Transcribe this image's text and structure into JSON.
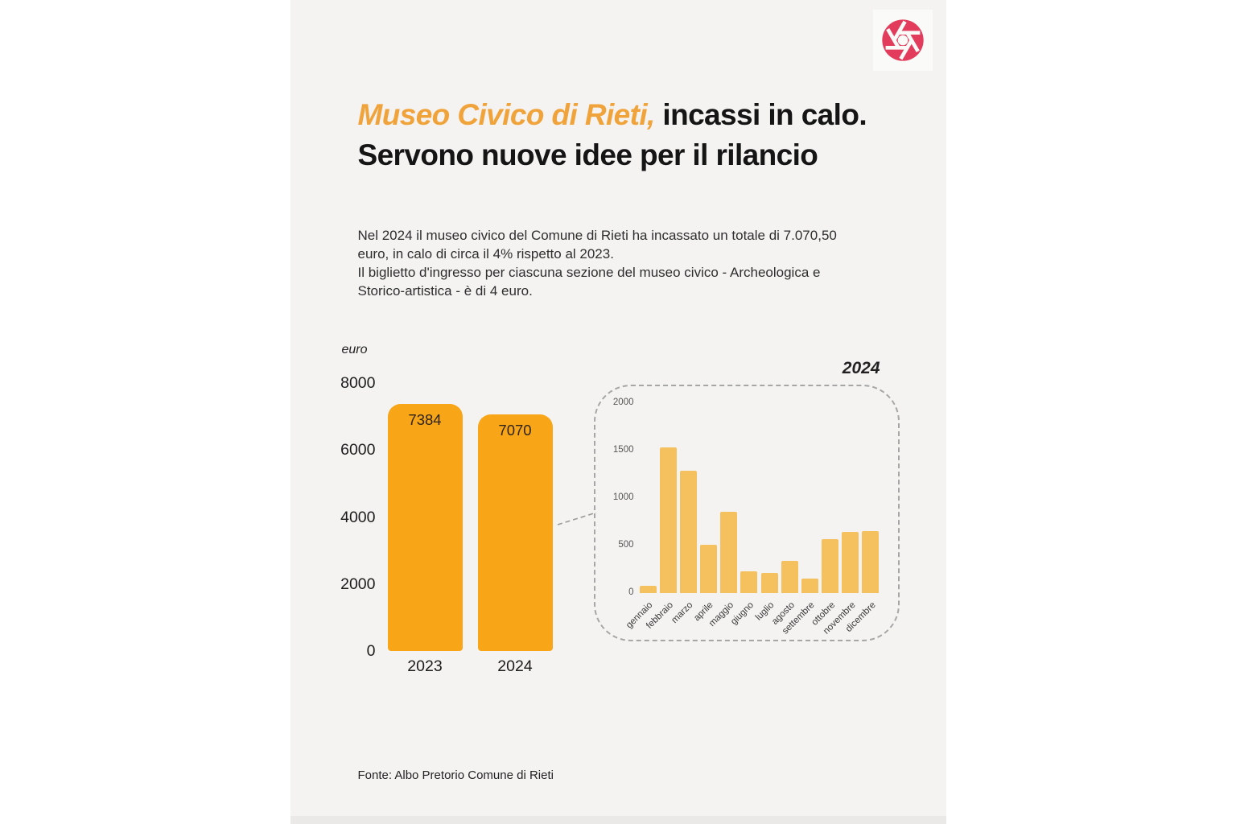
{
  "page": {
    "title": {
      "highlight": "Museo Civico di Rieti,",
      "rest": " incassi in calo. Servono nuove idee per il rilancio"
    },
    "intro": {
      "line1": "Nel 2024 il museo civico del Comune di Rieti ha incassato un totale di 7.070,50 euro, in calo di circa il 4% rispetto al 2023.",
      "line2": "Il biglietto d'ingresso per ciascuna sezione del museo civico - Archeologica e Storico-artistica - è di 4 euro."
    },
    "footer": "Fonte: Albo Pretorio Comune di Rieti",
    "logo": "aperture-icon"
  },
  "colors": {
    "main_bar": "#f8a517",
    "inset_bar": "#f5c05e",
    "title_accent": "#f1a33b",
    "logo_red": "#e23b5b",
    "panel_bg": "#f4f3f1"
  },
  "chart_data": [
    {
      "type": "bar",
      "title": "",
      "ylabel": "euro",
      "categories": [
        "2023",
        "2024"
      ],
      "values": [
        7384,
        7070
      ],
      "bar_labels": [
        "7384",
        "7070"
      ],
      "yticks": [
        8000,
        6000,
        4000,
        2000,
        0
      ],
      "ylim": [
        0,
        8000
      ],
      "grid": false,
      "legend": "none"
    },
    {
      "type": "bar",
      "title": "2024",
      "ylabel": "",
      "categories": [
        "gennaio",
        "febbraio",
        "marzo",
        "aprile",
        "maggio",
        "giugno",
        "luglio",
        "agosto",
        "settembre",
        "ottobre",
        "novembre",
        "dicembre"
      ],
      "values": [
        80,
        1530,
        1290,
        510,
        860,
        225,
        215,
        335,
        155,
        570,
        640,
        655
      ],
      "yticks": [
        2000,
        1500,
        1000,
        500,
        0
      ],
      "ylim": [
        0,
        2000
      ],
      "grid": false,
      "legend": "none"
    }
  ]
}
